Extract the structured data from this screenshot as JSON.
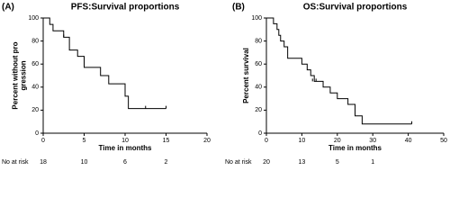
{
  "chart_data": [
    {
      "type": "step",
      "panel": "(A)",
      "title": "PFS:Survival proportions",
      "xlabel": "Time in months",
      "ylabel": [
        "Percent without pro",
        "gression"
      ],
      "x": [
        0,
        0.8,
        1.2,
        2.5,
        3.2,
        4.2,
        5.0,
        7.0,
        8.0,
        10.0,
        10.4,
        15
      ],
      "values": [
        100,
        94.4,
        88.9,
        83.3,
        72.2,
        66.7,
        57.1,
        50.0,
        42.9,
        32.1,
        21.4,
        21.4
      ],
      "censored": {
        "x": [
          2.5,
          12.5,
          15
        ],
        "values": [
          83.3,
          21.4,
          21.4
        ]
      },
      "color": "#000000",
      "xlim": [
        0,
        20
      ],
      "xticks": [
        0,
        5,
        10,
        15,
        20
      ],
      "ylim": [
        0,
        100
      ],
      "yticks": [
        0,
        20,
        40,
        60,
        80,
        100
      ],
      "at_risk_label": "No at risk",
      "at_risk": [
        18,
        10,
        6,
        2
      ]
    },
    {
      "type": "step",
      "panel": "(B)",
      "title": "OS:Survival proportions",
      "xlabel": "Time in months",
      "ylabel": [
        "Percent survival"
      ],
      "x": [
        0,
        2,
        3,
        3.5,
        4,
        5,
        6,
        10,
        11.5,
        12.5,
        13.5,
        16,
        18,
        20,
        23,
        25,
        27,
        41
      ],
      "values": [
        100,
        95,
        90,
        85,
        80,
        75,
        65,
        60,
        55,
        50,
        45,
        40,
        35,
        30,
        25,
        15,
        8,
        8
      ],
      "censored": {
        "x": [
          13,
          14,
          41
        ],
        "values": [
          45,
          45,
          8
        ]
      },
      "color": "#000000",
      "xlim": [
        0,
        50
      ],
      "xticks": [
        0,
        10,
        20,
        30,
        40,
        50
      ],
      "ylim": [
        0,
        100
      ],
      "yticks": [
        0,
        20,
        40,
        60,
        80,
        100
      ],
      "at_risk_label": "No at risk",
      "at_risk": [
        20,
        13,
        5,
        1
      ]
    }
  ]
}
